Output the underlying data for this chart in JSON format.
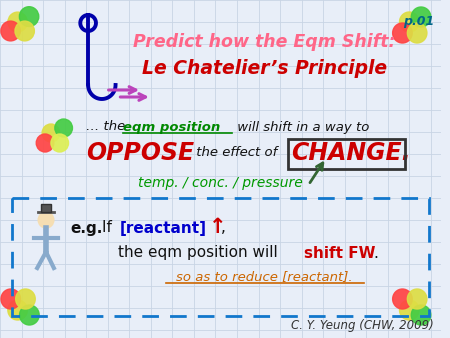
{
  "bg_color": "#e8eef8",
  "title_line1": "Predict how the Eqm Shift:",
  "title_line2": "Le Chatelier’s Principle",
  "title_color1": "#ff6688",
  "title_color2": "#cc0000",
  "page_label": "p.01",
  "page_label_color": "#006688",
  "oppose_text": "OPPOSE",
  "oppose_color": "#cc0000",
  "change_text": "CHANGE.",
  "change_color": "#cc0000",
  "arrow_color": "#336633",
  "temp_text": "temp. / conc. / pressure",
  "temp_color": "#009900",
  "box_color": "#1177cc",
  "reactant_color": "#0000cc",
  "up_arrow": "↑",
  "up_arrow_color": "#cc0000",
  "shift_fw_color": "#cc0000",
  "reduce_color": "#cc6600",
  "reduce_text": "so as to reduce [reactant].",
  "credit_text": "C. Y. Yeung (CHW, 2009)",
  "credit_color": "#333333",
  "grid_color": "#c8d4e4",
  "eqm_green": "#008800",
  "dark_text": "#111111",
  "hook_color": "#0000aa",
  "arrow2_color": "#bb44bb"
}
